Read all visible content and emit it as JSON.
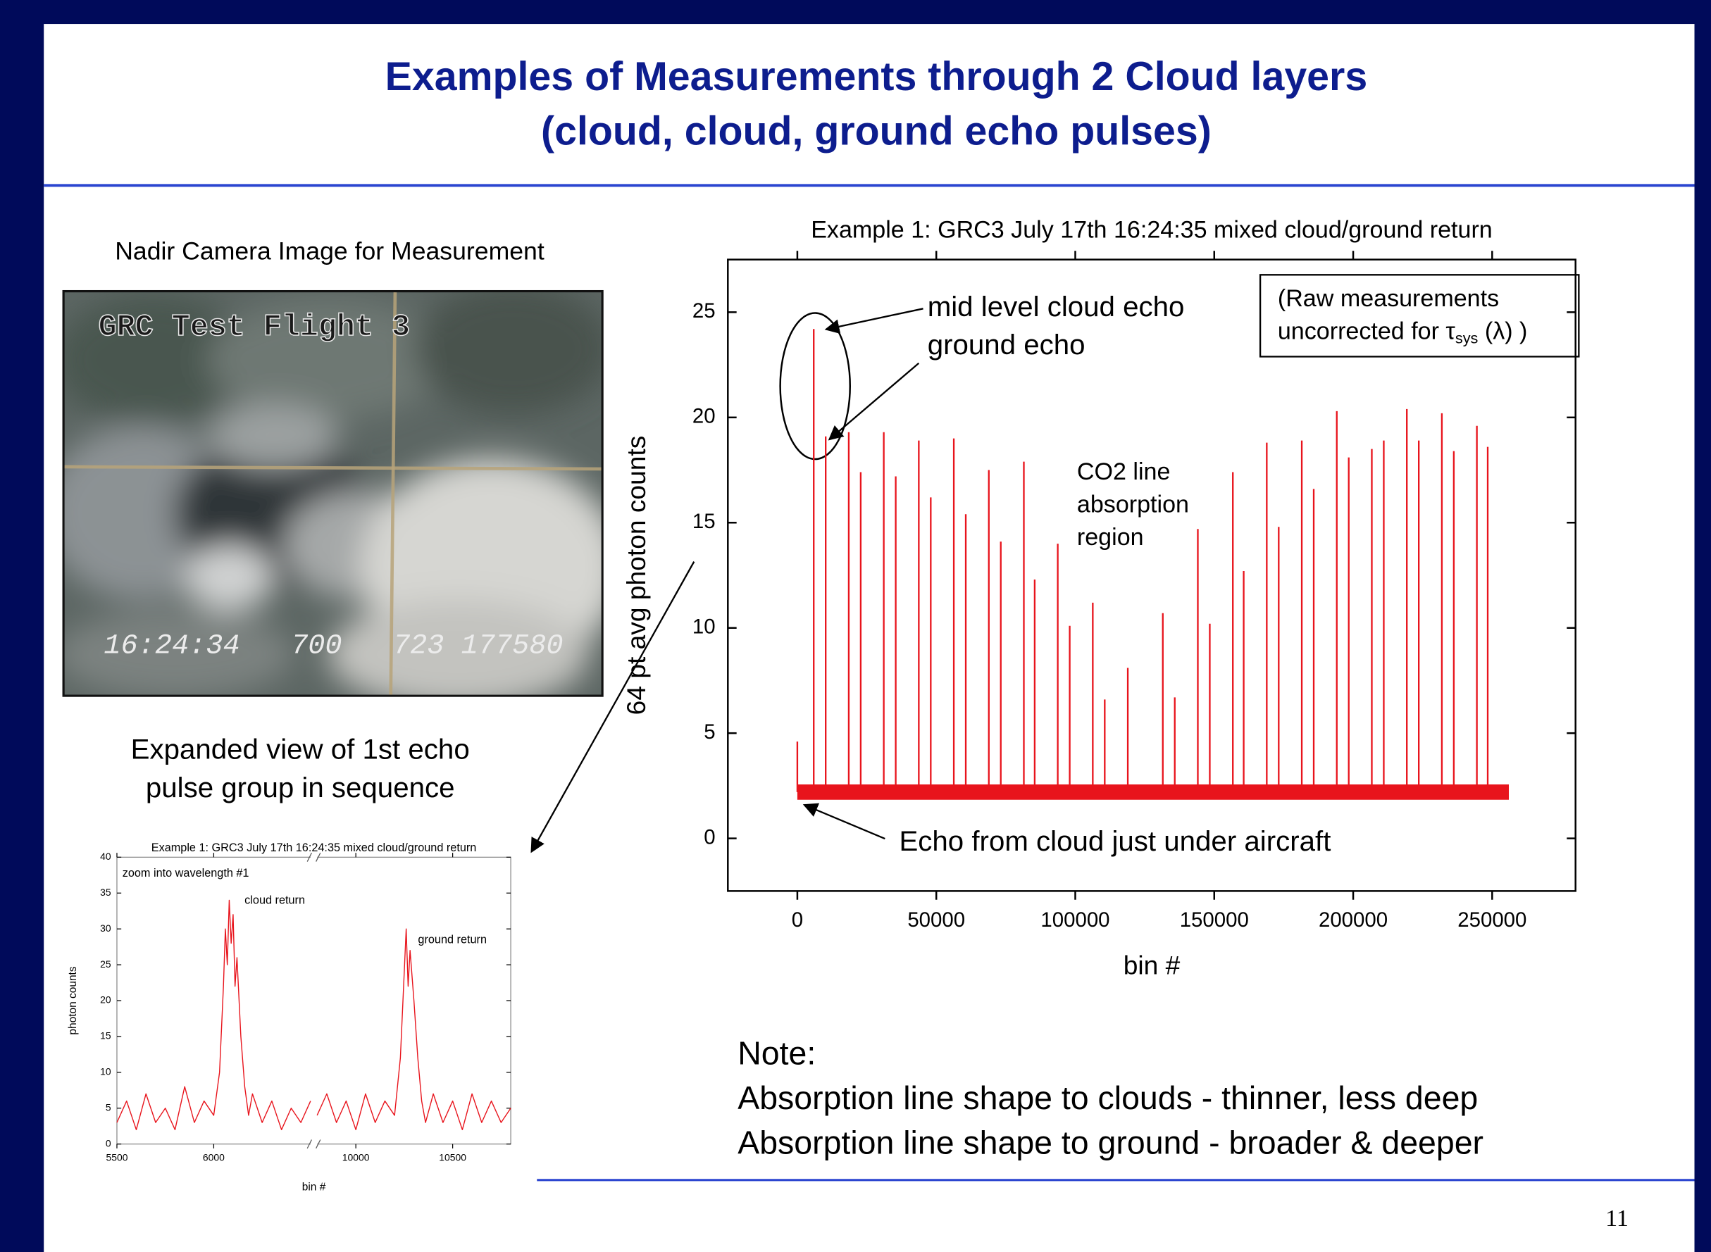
{
  "slide": {
    "title_lines": [
      "Examples of Measurements through 2 Cloud layers",
      "(cloud, cloud, ground echo pulses)"
    ],
    "camera_caption": "Nadir Camera Image for Measurement",
    "camera_overlay_title": "GRC Test Flight 3",
    "camera_overlay_stamp": "16:24:34   700   723 177580",
    "expanded_caption": [
      "Expanded view of 1st echo",
      "pulse group in sequence"
    ],
    "note_lines": [
      "Note:",
      "Absorption line shape to clouds - thinner, less deep",
      "Absorption line shape to ground - broader & deeper"
    ],
    "page_number": "11"
  },
  "chart_data": [
    {
      "type": "stem",
      "title": "Example 1: GRC3 July 17th 16:24:35 mixed cloud/ground return",
      "x_label": "bin #",
      "y_label": "64 pt avg photon counts",
      "annotations": [
        "mid level cloud echo",
        "ground echo",
        "CO2 line",
        "absorption",
        "region",
        "Echo from cloud just under aircraft"
      ],
      "note_box": [
        "(Raw measurements",
        "uncorrected for τ",
        "sys",
        " (λ) )"
      ],
      "color": "#e8141c",
      "floor": {
        "x": [
          0,
          256000
        ],
        "values": [
          2.2,
          2.2
        ]
      },
      "series": [
        {
          "color": "#e8141c",
          "x": [
            0,
            5900,
            10200,
            18500,
            22800,
            31100,
            35400,
            43700,
            48000,
            56300,
            60600,
            68900,
            73200,
            81500,
            85400,
            93700,
            98000,
            106300,
            110600,
            118900,
            131500,
            135800,
            144100,
            148400,
            156700,
            160600,
            168900,
            173200,
            181500,
            185800,
            194100,
            198400,
            206700,
            211000,
            219300,
            223600,
            231900,
            236200,
            244500,
            248400
          ],
          "values": [
            4.6,
            24.2,
            19.1,
            19.3,
            17.4,
            19.3,
            17.2,
            18.9,
            16.2,
            19.0,
            15.4,
            17.5,
            14.1,
            17.9,
            12.3,
            14.0,
            10.1,
            11.2,
            6.6,
            8.1,
            10.7,
            6.7,
            14.7,
            10.2,
            17.4,
            12.7,
            18.8,
            14.8,
            18.9,
            16.6,
            20.3,
            18.1,
            18.5,
            18.9,
            20.4,
            18.9,
            20.2,
            18.4,
            19.6,
            18.6
          ]
        }
      ],
      "xlim": [
        -25000,
        280000
      ],
      "xticks": [
        0,
        50000,
        100000,
        150000,
        200000,
        250000
      ],
      "ylim": [
        -2.5,
        27.5
      ],
      "yticks": [
        0,
        5,
        10,
        15,
        20,
        25
      ],
      "grid": false
    },
    {
      "type": "line",
      "title": "Example 1: GRC3 July 17th 16:24:35 mixed cloud/ground return",
      "x_label": "bin #",
      "y_label": "photon counts",
      "annotations": [
        "zoom into wavelength #1",
        "cloud return",
        "ground return"
      ],
      "series": [
        {
          "color": "#e8141c",
          "x": [
            5500,
            5550,
            5600,
            5650,
            5700,
            5750,
            5800,
            5850,
            5900,
            5950,
            6000,
            6030,
            6050,
            6060,
            6070,
            6080,
            6090,
            6100,
            6110,
            6120,
            6140,
            6160,
            6180,
            6200,
            6250,
            6300,
            6350,
            6400,
            6450,
            6500,
            null,
            9800,
            9850,
            9900,
            9950,
            10000,
            10050,
            10100,
            10150,
            10200,
            10230,
            10250,
            10260,
            10270,
            10280,
            10300,
            10320,
            10340,
            10360,
            10400,
            10450,
            10500,
            10550,
            10600,
            10650,
            10700,
            10750,
            10800
          ],
          "values": [
            3,
            6,
            2,
            7,
            3,
            5,
            2,
            8,
            3,
            6,
            4,
            10,
            22,
            30,
            25,
            34,
            28,
            32,
            22,
            26,
            15,
            8,
            4,
            7,
            3,
            6,
            2,
            5,
            3,
            6,
            null,
            4,
            7,
            3,
            6,
            2,
            7,
            3,
            6,
            4,
            12,
            24,
            30,
            22,
            27,
            20,
            12,
            6,
            3,
            7,
            3,
            6,
            2,
            7,
            3,
            6,
            3,
            5
          ]
        }
      ],
      "xlim": [
        5500,
        10800
      ],
      "xbreak": [
        6500,
        9800
      ],
      "xticks": [
        5500,
        6000,
        10000,
        10500
      ],
      "ylim": [
        0,
        40
      ],
      "yticks": [
        0,
        5,
        10,
        15,
        20,
        25,
        30,
        35,
        40
      ],
      "grid": false
    }
  ]
}
